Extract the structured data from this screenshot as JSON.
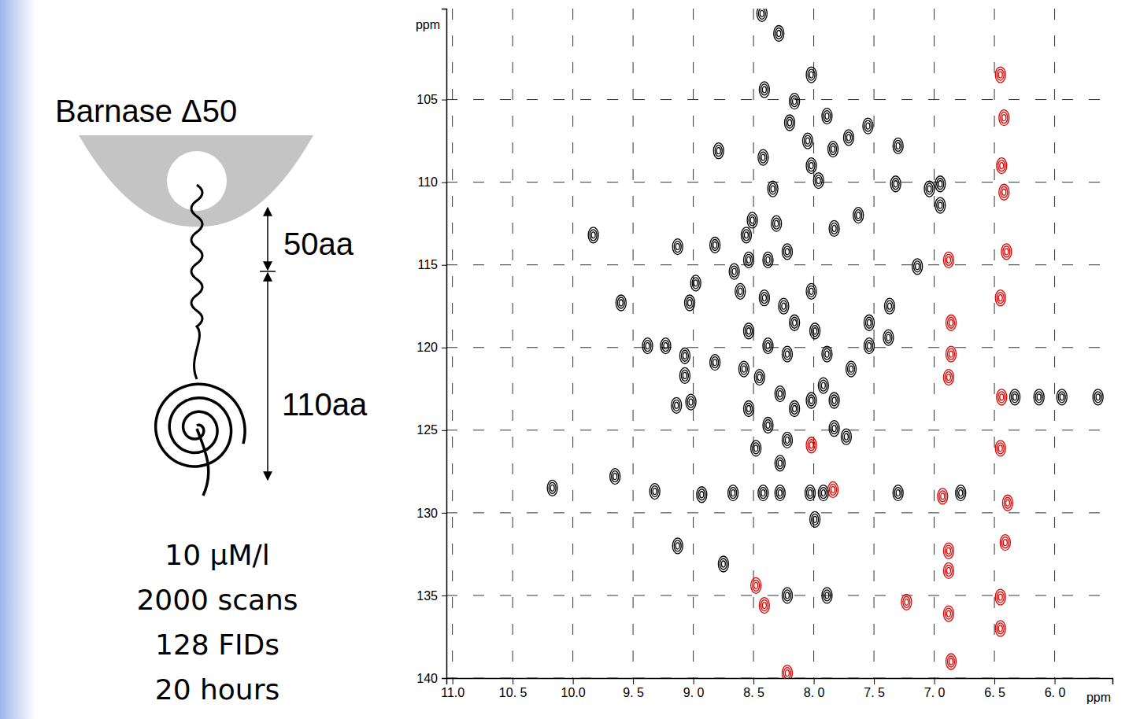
{
  "chart_data": {
    "type": "scatter",
    "marker": "contour",
    "grid": true,
    "tick_labels": true,
    "x_label": "ppm",
    "y_label": "ppm",
    "annotations": [
      "Barnase Δ50",
      "50aa",
      "110aa",
      "10 μM/l",
      "2000 scans",
      "128 FIDs",
      "20 hours"
    ],
    "xlim": [
      11.05,
      5.52
    ],
    "ylim": [
      99.5,
      140
    ],
    "xticks": [
      {
        "value": 11,
        "label": "11.0"
      },
      {
        "value": 10.5,
        "label": "10. 5"
      },
      {
        "value": 10,
        "label": "10.0"
      },
      {
        "value": 9.5,
        "label": "9. 5"
      },
      {
        "value": 9,
        "label": "9. 0"
      },
      {
        "value": 8.5,
        "label": "8. 5"
      },
      {
        "value": 8,
        "label": "8. 0"
      },
      {
        "value": 7.5,
        "label": "7. 5"
      },
      {
        "value": 7,
        "label": "7. 0"
      },
      {
        "value": 6.5,
        "label": "6. 5"
      },
      {
        "value": 6,
        "label": "6. 0"
      }
    ],
    "yticks": [
      105,
      110,
      115,
      120,
      125,
      130,
      135,
      140
    ],
    "series": [
      {
        "color": "#000000",
        "x": [
          8.43,
          8.29,
          8.02,
          8.41,
          8.16,
          8.2,
          7.89,
          7.55,
          7.71,
          8.05,
          7.84,
          8.79,
          7.3,
          7.32,
          7.04,
          6.95,
          6.95,
          7.63,
          7.83,
          7.96,
          8.02,
          8.42,
          8.34,
          8.56,
          8.82,
          9.13,
          8.66,
          8.98,
          9.03,
          9.6,
          9.83,
          9.38,
          9.23,
          9.07,
          9.07,
          8.82,
          9.14,
          9.02,
          8.51,
          8.31,
          8.54,
          8.38,
          8.22,
          8.61,
          8.41,
          8.25,
          8.16,
          8.54,
          8.38,
          8.22,
          8.58,
          8.45,
          8.28,
          8.16,
          8.54,
          8.38,
          8.22,
          8.48,
          8.28,
          8.02,
          7.99,
          7.89,
          7.92,
          8.02,
          7.83,
          7.83,
          7.69,
          7.54,
          7.54,
          7.38,
          7.14,
          7.37,
          7.73,
          8.93,
          8.67,
          8.42,
          8.28,
          8.03,
          7.92,
          7.99,
          7.3,
          6.78,
          6.33,
          6.13,
          5.94,
          5.64,
          8.22,
          7.89,
          8.75,
          9.13,
          10.17,
          9.65,
          9.32
        ],
        "values": [
          99.8,
          101.0,
          103.5,
          104.4,
          105.1,
          106.4,
          106.0,
          106.6,
          107.3,
          107.5,
          108.0,
          108.1,
          107.8,
          110.1,
          110.4,
          110.1,
          111.4,
          112.0,
          112.8,
          109.9,
          109.0,
          108.5,
          110.4,
          113.2,
          113.8,
          113.9,
          115.4,
          116.1,
          117.3,
          117.3,
          113.2,
          119.9,
          119.9,
          120.5,
          121.7,
          120.9,
          123.5,
          123.3,
          112.3,
          112.5,
          114.7,
          114.7,
          114.2,
          116.6,
          117.0,
          117.5,
          118.5,
          119.0,
          119.9,
          120.4,
          121.3,
          121.8,
          122.8,
          123.7,
          123.7,
          124.7,
          125.6,
          126.1,
          127.0,
          116.6,
          119.0,
          120.4,
          122.3,
          123.2,
          123.2,
          124.9,
          121.3,
          118.5,
          119.9,
          119.4,
          115.1,
          117.5,
          125.4,
          128.9,
          128.8,
          128.8,
          128.8,
          128.8,
          128.8,
          130.4,
          128.8,
          128.8,
          123.0,
          123.0,
          123.0,
          123.0,
          135.0,
          135.0,
          133.1,
          132.0,
          128.5,
          127.8,
          128.7
        ]
      },
      {
        "color": "#e00000",
        "x": [
          6.45,
          6.42,
          6.44,
          6.42,
          6.4,
          6.45,
          6.44,
          6.45,
          6.39,
          6.41,
          6.45,
          6.45,
          6.88,
          6.86,
          6.86,
          6.88,
          6.93,
          6.88,
          6.88,
          6.88,
          6.86,
          7.23,
          8.48,
          8.41,
          8.02,
          7.84,
          8.22
        ],
        "values": [
          103.5,
          106.1,
          109.0,
          110.6,
          114.2,
          117.0,
          123.0,
          126.1,
          129.4,
          131.8,
          135.1,
          137.0,
          114.7,
          118.5,
          120.4,
          121.8,
          129.0,
          132.3,
          133.5,
          136.1,
          139.0,
          135.4,
          134.4,
          135.6,
          125.9,
          128.6,
          139.7
        ]
      }
    ]
  }
}
